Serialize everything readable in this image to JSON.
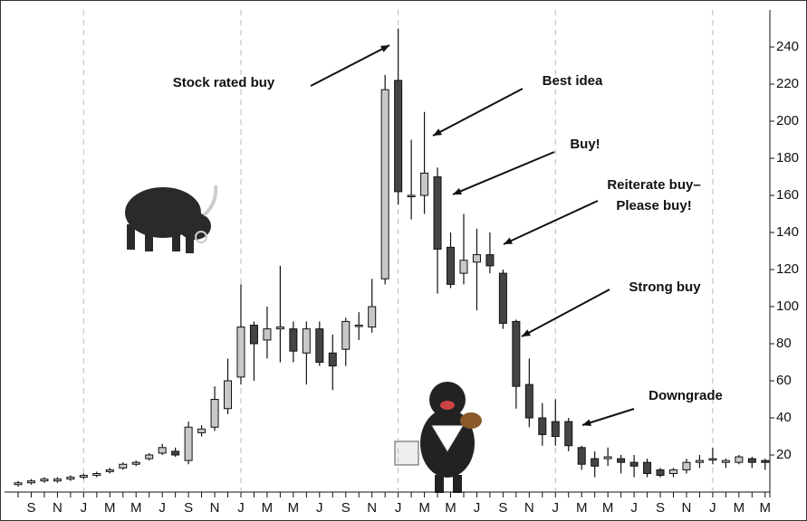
{
  "chart_data": {
    "type": "candlestick",
    "categories": [
      null,
      "S",
      null,
      "N",
      null,
      "J",
      null,
      "M",
      null,
      "M",
      null,
      "J",
      null,
      "S",
      null,
      "N",
      null,
      "J",
      null,
      "M",
      null,
      "M",
      null,
      "J",
      null,
      "S",
      null,
      "N",
      null,
      "J",
      null,
      "M",
      null,
      "M",
      null,
      "J",
      null,
      "S",
      null,
      "N",
      null,
      "J",
      null,
      "M",
      null,
      "M",
      null,
      "J",
      null,
      "S",
      null,
      "N",
      null,
      "J",
      null,
      "M",
      null,
      "M"
    ],
    "open": [
      4,
      5,
      6,
      6,
      7,
      8,
      9,
      11,
      13,
      15,
      18,
      21,
      22,
      17,
      32,
      35,
      45,
      62,
      90,
      82,
      88,
      88,
      75,
      88,
      75,
      77,
      90,
      89,
      115,
      222,
      160,
      160,
      170,
      132,
      118,
      124,
      128,
      118,
      92,
      58,
      40,
      38,
      38,
      24,
      18,
      18,
      18,
      16,
      16,
      12,
      10,
      12,
      16,
      18,
      16,
      16,
      18,
      17
    ],
    "high": [
      6,
      7,
      8,
      8,
      9,
      10,
      11,
      13,
      16,
      17,
      21,
      26,
      24,
      38,
      36,
      57,
      72,
      112,
      92,
      100,
      122,
      92,
      92,
      92,
      85,
      94,
      97,
      115,
      225,
      250,
      190,
      205,
      175,
      140,
      150,
      142,
      140,
      120,
      93,
      72,
      48,
      50,
      40,
      25,
      22,
      24,
      20,
      20,
      18,
      13,
      13,
      18,
      20,
      24,
      18,
      20,
      19,
      18
    ],
    "low": [
      3,
      4,
      5,
      5,
      6,
      7,
      8,
      10,
      12,
      14,
      17,
      20,
      19,
      15,
      30,
      33,
      42,
      58,
      60,
      72,
      70,
      70,
      58,
      68,
      55,
      68,
      82,
      86,
      112,
      155,
      147,
      150,
      107,
      110,
      112,
      98,
      118,
      88,
      45,
      35,
      25,
      25,
      22,
      12,
      8,
      14,
      10,
      8,
      8,
      8,
      8,
      10,
      13,
      15,
      13,
      15,
      13,
      12
    ],
    "close": [
      5,
      6,
      7,
      7,
      8,
      9,
      10,
      12,
      15,
      16,
      20,
      24,
      20,
      35,
      34,
      50,
      60,
      89,
      80,
      88,
      89,
      76,
      88,
      70,
      68,
      92,
      90,
      100,
      217,
      162,
      160,
      172,
      131,
      112,
      125,
      128,
      122,
      91,
      57,
      40,
      31,
      30,
      25,
      15,
      14,
      19,
      16,
      14,
      10,
      9,
      12,
      16,
      17,
      18,
      17,
      19,
      16,
      16
    ],
    "up_color": "#c8c8c8",
    "down_color": "#444444",
    "ylim": [
      0,
      260
    ],
    "yticks": [
      20,
      40,
      60,
      80,
      100,
      120,
      140,
      160,
      180,
      200,
      220,
      240
    ],
    "annotations": [
      "Stock rated buy",
      "Best idea",
      "Buy!",
      "Reiterate buy–",
      "Please buy!",
      "Strong buy",
      "Downgrade"
    ]
  }
}
